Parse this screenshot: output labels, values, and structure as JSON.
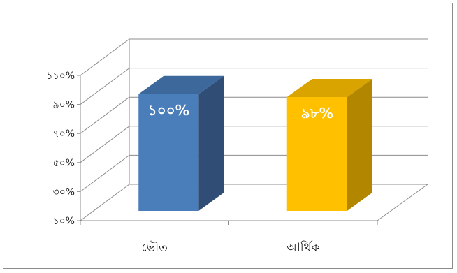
{
  "chart_data": {
    "type": "bar",
    "categories": [
      "ভৌত",
      "আর্থিক"
    ],
    "values": [
      100,
      98
    ],
    "data_labels": [
      "১০০%",
      "৯৮%"
    ],
    "title": "",
    "xlabel": "",
    "ylabel": "",
    "ylim": [
      10,
      110
    ],
    "y_ticks": [
      10,
      30,
      50,
      70,
      90,
      110
    ],
    "y_tick_labels": [
      "১০%",
      "৩০%",
      "৫০%",
      "৭০%",
      "৯০%",
      "১১০%"
    ],
    "grid": true,
    "legend": "none",
    "style": "3d-bar",
    "colors": {
      "series_fill": [
        "#4a7ebb",
        "#ffc000"
      ],
      "series_side": [
        "#2f4d75",
        "#b38600"
      ],
      "series_top": [
        "#3c689c",
        "#d9a300"
      ],
      "grid": "#8c8c8c"
    }
  }
}
